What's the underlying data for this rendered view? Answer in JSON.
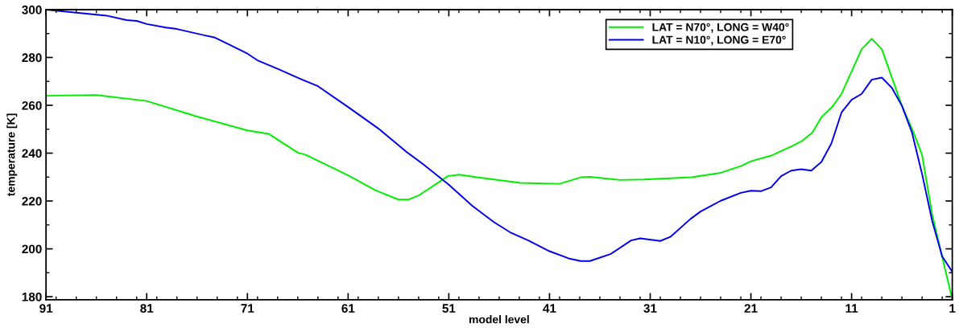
{
  "chart_data": {
    "type": "line",
    "xlabel": "model level",
    "ylabel": "temperature [K]",
    "xlim": [
      91,
      1
    ],
    "xticks": [
      91,
      81,
      71,
      61,
      51,
      41,
      31,
      21,
      11,
      1
    ],
    "ylim": [
      178.7,
      300
    ],
    "yticks": [
      180,
      200,
      220,
      240,
      260,
      280,
      300
    ],
    "grid": false,
    "legend": "top right",
    "marker": "none",
    "line_style": "solid",
    "series": [
      {
        "name": "LAT = N70°, LONG = W40°",
        "color": "#00ee00",
        "x": [
          91,
          86,
          81,
          76,
          71,
          68.9,
          66,
          65.2,
          61,
          58.3,
          56,
          55,
          54,
          51.1,
          50,
          48.2,
          43.9,
          40,
          37.9,
          37,
          34,
          31.6,
          26.9,
          24,
          22,
          21,
          18.9,
          16.9,
          16,
          14.9,
          14,
          12.9,
          12,
          10,
          9,
          8,
          6,
          4.9,
          4,
          3,
          2,
          1
        ],
        "values": [
          264.0,
          264.3,
          261.8,
          255.3,
          249.5,
          248.1,
          240.2,
          239.3,
          230.7,
          224.5,
          220.6,
          220.6,
          222.3,
          230.4,
          231.0,
          229.9,
          227.6,
          227.2,
          229.9,
          230.1,
          228.8,
          229.0,
          229.9,
          231.8,
          234.6,
          236.6,
          239.1,
          243.0,
          244.9,
          248.6,
          255.0,
          259.5,
          264.8,
          283.5,
          287.8,
          283.5,
          259.8,
          249.2,
          239.3,
          214.5,
          196.6,
          178.9
        ]
      },
      {
        "name": "LAT = N10°, LONG = E70°",
        "color": "#0000ee",
        "x": [
          91,
          85,
          83,
          82,
          81,
          79.1,
          78,
          75.1,
          74.3,
          72.9,
          71,
          70,
          67.9,
          65.7,
          64,
          61,
          58,
          55.1,
          53.5,
          51,
          48.7,
          46.5,
          44.9,
          43.1,
          41,
          39.1,
          37.9,
          37,
          34.9,
          32.9,
          32,
          30,
          29,
          27,
          26,
          24,
          22,
          21,
          20,
          19,
          18,
          17,
          16,
          15,
          14,
          13,
          12,
          11,
          10,
          9,
          8,
          7,
          6,
          5,
          4,
          3,
          2,
          1
        ],
        "values": [
          300.0,
          297.5,
          295.6,
          295.3,
          294.0,
          292.5,
          291.9,
          289.1,
          288.4,
          285.6,
          281.6,
          278.8,
          275.1,
          271.0,
          268.0,
          259.3,
          250.3,
          240.2,
          235.2,
          226.8,
          218.1,
          211.1,
          206.9,
          203.5,
          199.0,
          196.0,
          194.9,
          194.9,
          197.9,
          203.5,
          204.4,
          203.3,
          205.0,
          212.5,
          215.6,
          220.1,
          223.4,
          224.3,
          224.1,
          225.7,
          230.4,
          232.7,
          233.3,
          232.7,
          236.3,
          244.1,
          257.0,
          262.3,
          264.8,
          270.7,
          271.6,
          267.3,
          259.8,
          248.6,
          231.3,
          211.7,
          196.8,
          190.4
        ]
      }
    ]
  }
}
